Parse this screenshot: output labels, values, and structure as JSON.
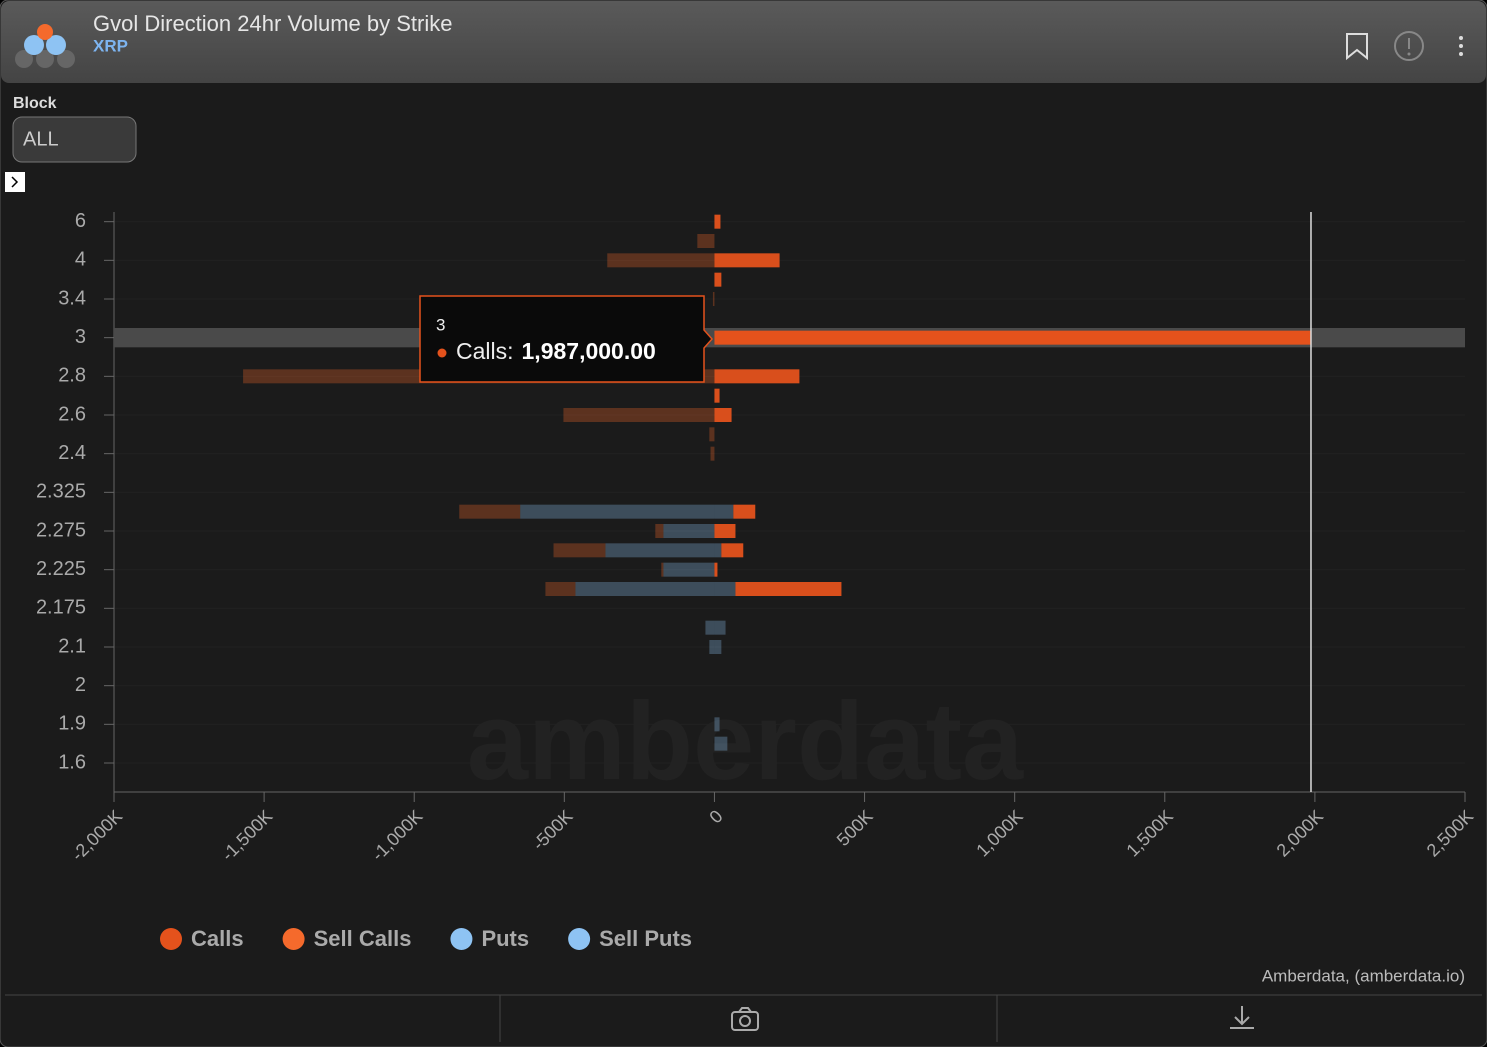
{
  "header": {
    "title": "Gvol Direction 24hr Volume by Strike",
    "subtitle": "XRP"
  },
  "filter": {
    "label": "Block",
    "value": "ALL"
  },
  "chart_data": {
    "type": "bar",
    "orientation": "horizontal",
    "stacked": true,
    "categories": [
      "6",
      null,
      "4",
      null,
      "3.4",
      null,
      "3",
      null,
      "2.8",
      null,
      "2.6",
      null,
      "2.4",
      null,
      "2.325",
      null,
      "2.275",
      null,
      "2.225",
      null,
      "2.175",
      null,
      "2.1",
      null,
      "2",
      null,
      "1.9",
      null,
      "1.6",
      null
    ],
    "series": [
      {
        "name": "Calls",
        "color": "#e4521c",
        "values": [
          20000,
          null,
          217000,
          23000,
          null,
          null,
          1987000,
          null,
          283000,
          17000,
          57000,
          null,
          null,
          null,
          null,
          73000,
          70000,
          73000,
          10000,
          353000,
          null,
          null,
          null,
          null,
          null,
          null,
          null,
          null,
          null,
          null
        ]
      },
      {
        "name": "Sell Calls",
        "color": "#f56a2c",
        "values": [
          null,
          -57000,
          -357000,
          null,
          -5000,
          null,
          null,
          null,
          -1570000,
          null,
          -503000,
          -17000,
          -13000,
          null,
          null,
          -203000,
          -27000,
          -173000,
          -7000,
          -100000,
          null,
          null,
          null,
          null,
          null,
          null,
          null,
          null,
          null,
          null
        ]
      },
      {
        "name": "Puts",
        "color": "#8ec3f3",
        "values": [
          null,
          null,
          null,
          null,
          null,
          null,
          null,
          null,
          null,
          null,
          null,
          null,
          null,
          null,
          null,
          63000,
          null,
          23000,
          null,
          70000,
          null,
          37000,
          23000,
          null,
          null,
          null,
          17000,
          43000,
          null,
          null
        ]
      },
      {
        "name": "Sell Puts",
        "color": "#8ec3f3",
        "values": [
          null,
          null,
          null,
          null,
          null,
          null,
          null,
          null,
          null,
          null,
          null,
          null,
          null,
          null,
          null,
          -647000,
          -170000,
          -363000,
          -170000,
          -463000,
          null,
          -30000,
          -17000,
          null,
          null,
          null,
          null,
          null,
          null,
          null
        ]
      }
    ],
    "xlim": [
      -2000000,
      2500000
    ],
    "xticks": [
      {
        "value": -2000000,
        "label": "-2,000K"
      },
      {
        "value": -1500000,
        "label": "-1,500K"
      },
      {
        "value": -1000000,
        "label": "-1,000K"
      },
      {
        "value": -500000,
        "label": "-500K"
      },
      0,
      {
        "value": 500000,
        "label": "500K"
      },
      {
        "value": 1000000,
        "label": "1,000K"
      },
      {
        "value": 1500000,
        "label": "1,500K"
      },
      {
        "value": 2000000,
        "label": "2,000K"
      },
      {
        "value": 2500000,
        "label": "2,500K"
      }
    ],
    "grid": true,
    "legend": "bottom",
    "tooltip": {
      "title": "3",
      "label": "Calls:",
      "value": "1,987,000.00"
    },
    "watermark": "amberdata",
    "credit": "Amberdata, (amberdata.io)"
  }
}
